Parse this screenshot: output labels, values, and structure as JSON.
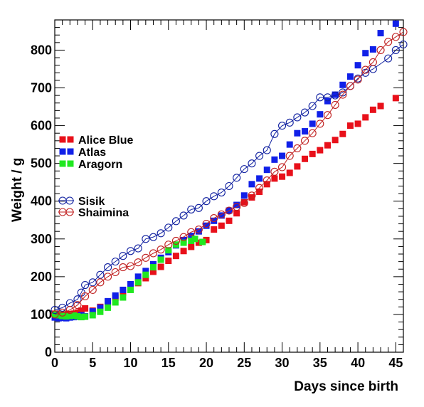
{
  "chart_data": {
    "type": "scatter",
    "xlabel": "Days since birth",
    "ylabel": "Weight / g",
    "xlim": [
      0,
      46
    ],
    "ylim": [
      0,
      880
    ],
    "x_ticks": [
      0,
      5,
      10,
      15,
      20,
      25,
      30,
      35,
      40,
      45
    ],
    "y_ticks": [
      0,
      100,
      200,
      300,
      400,
      500,
      600,
      700,
      800
    ],
    "grid": false,
    "series": [
      {
        "name": "Alice Blue",
        "color": "#e8101a",
        "marker": "filled-square",
        "line": false,
        "points": [
          [
            0,
            102
          ],
          [
            0.5,
            100
          ],
          [
            1,
            100
          ],
          [
            1.5,
            100
          ],
          [
            2,
            101
          ],
          [
            2.5,
            102
          ],
          [
            3,
            105
          ],
          [
            3.5,
            110
          ],
          [
            4,
            116
          ],
          [
            5,
            110
          ],
          [
            6,
            120
          ],
          [
            7,
            133
          ],
          [
            8,
            145
          ],
          [
            9,
            158
          ],
          [
            10,
            170
          ],
          [
            11,
            183
          ],
          [
            12,
            196
          ],
          [
            13,
            213
          ],
          [
            14,
            226
          ],
          [
            15,
            242
          ],
          [
            16,
            255
          ],
          [
            17,
            268
          ],
          [
            18,
            279
          ],
          [
            19,
            290
          ],
          [
            20,
            297
          ],
          [
            21,
            325
          ],
          [
            22,
            335
          ],
          [
            23,
            348
          ],
          [
            24,
            368
          ],
          [
            25,
            397
          ],
          [
            26,
            410
          ],
          [
            27,
            425
          ],
          [
            28,
            445
          ],
          [
            29,
            460
          ],
          [
            30,
            465
          ],
          [
            31,
            475
          ],
          [
            32,
            492
          ],
          [
            33,
            512
          ],
          [
            34,
            525
          ],
          [
            35,
            535
          ],
          [
            36,
            548
          ],
          [
            37,
            562
          ],
          [
            38,
            578
          ],
          [
            39,
            600
          ],
          [
            40,
            605
          ],
          [
            41,
            622
          ],
          [
            42,
            642
          ],
          [
            43,
            652
          ],
          [
            45,
            673
          ]
        ]
      },
      {
        "name": "Atlas",
        "color": "#1020e8",
        "marker": "filled-square",
        "line": false,
        "points": [
          [
            0,
            92
          ],
          [
            0.5,
            90
          ],
          [
            1,
            91
          ],
          [
            1.5,
            90
          ],
          [
            2,
            92
          ],
          [
            2.5,
            93
          ],
          [
            3,
            94
          ],
          [
            3.5,
            98
          ],
          [
            4,
            95
          ],
          [
            5,
            108
          ],
          [
            6,
            118
          ],
          [
            7,
            135
          ],
          [
            8,
            150
          ],
          [
            9,
            165
          ],
          [
            10,
            180
          ],
          [
            11,
            200
          ],
          [
            12,
            215
          ],
          [
            13,
            233
          ],
          [
            14,
            250
          ],
          [
            15,
            265
          ],
          [
            16,
            283
          ],
          [
            17,
            297
          ],
          [
            18,
            308
          ],
          [
            19,
            320
          ],
          [
            20,
            335
          ],
          [
            21,
            348
          ],
          [
            22,
            362
          ],
          [
            23,
            375
          ],
          [
            24,
            390
          ],
          [
            25,
            415
          ],
          [
            26,
            445
          ],
          [
            27,
            460
          ],
          [
            28,
            483
          ],
          [
            29,
            510
          ],
          [
            30,
            520
          ],
          [
            31,
            550
          ],
          [
            32,
            580
          ],
          [
            33,
            585
          ],
          [
            34,
            605
          ],
          [
            35,
            630
          ],
          [
            36,
            665
          ],
          [
            37,
            682
          ],
          [
            38,
            708
          ],
          [
            39,
            730
          ],
          [
            40,
            760
          ],
          [
            41,
            792
          ],
          [
            42,
            802
          ],
          [
            43,
            845
          ],
          [
            45,
            870
          ]
        ]
      },
      {
        "name": "Aragorn",
        "color": "#20e820",
        "marker": "filled-square",
        "line": false,
        "points": [
          [
            0,
            100
          ],
          [
            0.5,
            98
          ],
          [
            1,
            96
          ],
          [
            1.5,
            95
          ],
          [
            2,
            96
          ],
          [
            2.5,
            97
          ],
          [
            3,
            95
          ],
          [
            3.5,
            93
          ],
          [
            4,
            94
          ],
          [
            5,
            98
          ],
          [
            6,
            107
          ],
          [
            7,
            118
          ],
          [
            8,
            132
          ],
          [
            9,
            145
          ],
          [
            10,
            165
          ],
          [
            11,
            185
          ],
          [
            12,
            205
          ],
          [
            13,
            225
          ],
          [
            14,
            245
          ],
          [
            15,
            270
          ],
          [
            16,
            285
          ],
          [
            17,
            290
          ],
          [
            18,
            295
          ],
          [
            18.5,
            300
          ],
          [
            19.5,
            292
          ]
        ]
      },
      {
        "name": "Sisik",
        "color": "#1020a0",
        "marker": "open-circle",
        "line": true,
        "points": [
          [
            0,
            112
          ],
          [
            1,
            118
          ],
          [
            2,
            130
          ],
          [
            3,
            140
          ],
          [
            3.5,
            158
          ],
          [
            4,
            178
          ],
          [
            5,
            185
          ],
          [
            6,
            205
          ],
          [
            7,
            225
          ],
          [
            8,
            240
          ],
          [
            9,
            255
          ],
          [
            10,
            268
          ],
          [
            11,
            275
          ],
          [
            12,
            300
          ],
          [
            13,
            305
          ],
          [
            14,
            315
          ],
          [
            15,
            330
          ],
          [
            16,
            347
          ],
          [
            17,
            362
          ],
          [
            18,
            378
          ],
          [
            19,
            382
          ],
          [
            20,
            400
          ],
          [
            21,
            413
          ],
          [
            22,
            423
          ],
          [
            23,
            440
          ],
          [
            24,
            462
          ],
          [
            25,
            485
          ],
          [
            26,
            500
          ],
          [
            27,
            520
          ],
          [
            28,
            535
          ],
          [
            29,
            578
          ],
          [
            30,
            600
          ],
          [
            31,
            608
          ],
          [
            32,
            622
          ],
          [
            33,
            635
          ],
          [
            34,
            652
          ],
          [
            35,
            675
          ],
          [
            36,
            675
          ],
          [
            37,
            680
          ],
          [
            38,
            688
          ],
          [
            39,
            705
          ],
          [
            40,
            725
          ],
          [
            41,
            740
          ],
          [
            42,
            750
          ],
          [
            44,
            778
          ],
          [
            45,
            800
          ],
          [
            46,
            815
          ]
        ]
      },
      {
        "name": "Shaimina",
        "color": "#c02020",
        "marker": "open-circle",
        "line": true,
        "points": [
          [
            0,
            100
          ],
          [
            1,
            105
          ],
          [
            2,
            112
          ],
          [
            3,
            125
          ],
          [
            4,
            148
          ],
          [
            5,
            165
          ],
          [
            6,
            185
          ],
          [
            7,
            200
          ],
          [
            8,
            212
          ],
          [
            9,
            225
          ],
          [
            10,
            228
          ],
          [
            11,
            238
          ],
          [
            12,
            250
          ],
          [
            13,
            262
          ],
          [
            14,
            272
          ],
          [
            15,
            285
          ],
          [
            16,
            295
          ],
          [
            17,
            305
          ],
          [
            18,
            318
          ],
          [
            19,
            325
          ],
          [
            20,
            340
          ],
          [
            21,
            355
          ],
          [
            22,
            365
          ],
          [
            23,
            375
          ],
          [
            24,
            385
          ],
          [
            25,
            395
          ],
          [
            26,
            415
          ],
          [
            27,
            435
          ],
          [
            28,
            455
          ],
          [
            29,
            478
          ],
          [
            30,
            490
          ],
          [
            31,
            520
          ],
          [
            32,
            540
          ],
          [
            33,
            560
          ],
          [
            34,
            580
          ],
          [
            35,
            605
          ],
          [
            36,
            628
          ],
          [
            37,
            655
          ],
          [
            38,
            682
          ],
          [
            39,
            705
          ],
          [
            40,
            722
          ],
          [
            41,
            748
          ],
          [
            42,
            768
          ],
          [
            43,
            800
          ],
          [
            44,
            822
          ],
          [
            45,
            835
          ],
          [
            46,
            848
          ]
        ]
      }
    ]
  }
}
